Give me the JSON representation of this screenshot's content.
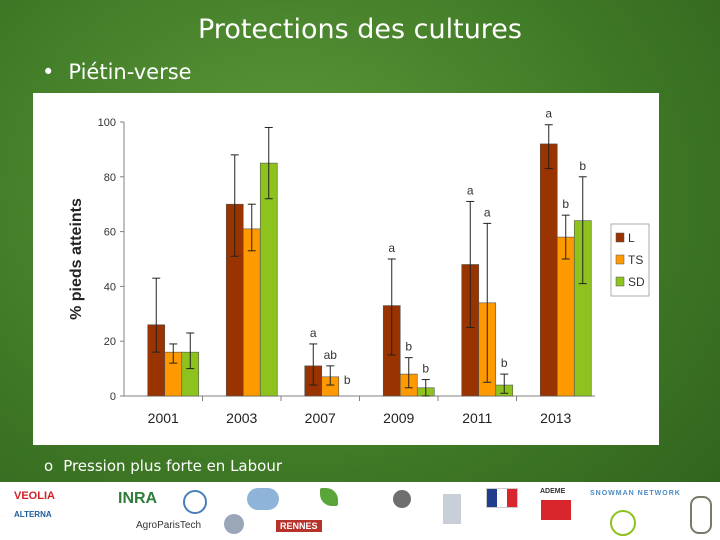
{
  "slide": {
    "title": "Protections des cultures",
    "bullet": "Piétin-verse",
    "sub_bullet": "Pression plus forte en Labour"
  },
  "chart_data": {
    "type": "bar",
    "ylabel": "% pieds atteints",
    "xlabel": "",
    "ylim": [
      0,
      100
    ],
    "yticks": [
      0,
      20,
      40,
      60,
      80,
      100
    ],
    "categories": [
      "2001",
      "2003",
      "2007",
      "2009",
      "2011",
      "2013"
    ],
    "series": [
      {
        "name": "L",
        "color": "#993300",
        "values": [
          26,
          70,
          11,
          33,
          48,
          92
        ],
        "err_low": [
          16,
          51,
          4,
          15,
          25,
          83
        ],
        "err_high": [
          43,
          88,
          19,
          50,
          71,
          99
        ]
      },
      {
        "name": "TS",
        "color": "#ff9900",
        "values": [
          16,
          61,
          7,
          8,
          34,
          58
        ],
        "err_low": [
          12,
          53,
          4,
          3,
          5,
          50
        ],
        "err_high": [
          19,
          70,
          11,
          14,
          63,
          66
        ]
      },
      {
        "name": "SD",
        "color": "#8dc21f",
        "values": [
          16,
          85,
          0,
          3,
          4,
          64
        ],
        "err_low": [
          10,
          72,
          0,
          0,
          1,
          41
        ],
        "err_high": [
          23,
          98,
          0,
          6,
          8,
          80
        ]
      }
    ],
    "annotations": [
      {
        "category": "2007",
        "series": "L",
        "text": "a"
      },
      {
        "category": "2007",
        "series": "TS",
        "text": "ab"
      },
      {
        "category": "2007",
        "series": "SD",
        "text": "b"
      },
      {
        "category": "2009",
        "series": "L",
        "text": "a"
      },
      {
        "category": "2009",
        "series": "TS",
        "text": "b"
      },
      {
        "category": "2009",
        "series": "SD",
        "text": "b"
      },
      {
        "category": "2011",
        "series": "L",
        "text": "a"
      },
      {
        "category": "2011",
        "series": "TS",
        "text": "a"
      },
      {
        "category": "2011",
        "series": "SD",
        "text": "b"
      },
      {
        "category": "2013",
        "series": "L",
        "text": "a"
      },
      {
        "category": "2013",
        "series": "TS",
        "text": "b"
      },
      {
        "category": "2013",
        "series": "SD",
        "text": "b"
      }
    ],
    "legend_position": "right",
    "grid": false
  },
  "logos": [
    "VEOLIA",
    "ALTERNA",
    "INRA",
    "AgroParisTech",
    "RENNES",
    "ADEME",
    "SNOWMAN NETWORK"
  ]
}
